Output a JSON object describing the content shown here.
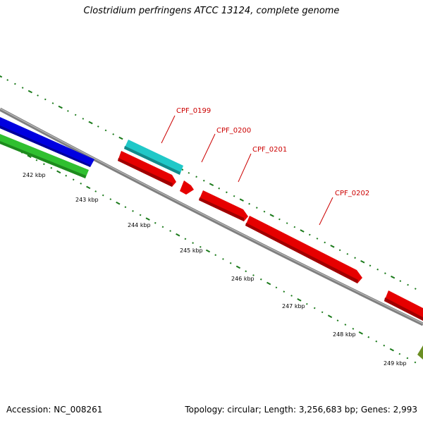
{
  "title": "Clostridium perfringens ATCC 13124, complete genome",
  "footer": {
    "accession": "Accession: NC_008261",
    "summary": "Topology: circular; Length: 3,256,683 bp; Genes: 2,993"
  },
  "ticks": [
    {
      "label": "242 kbp"
    },
    {
      "label": "243 kbp"
    },
    {
      "label": "244 kbp"
    },
    {
      "label": "245 kbp"
    },
    {
      "label": "246 kbp"
    },
    {
      "label": "247 kbp"
    },
    {
      "label": "248 kbp"
    },
    {
      "label": "249 kbp"
    }
  ],
  "genes": [
    {
      "label": "CPF_0199",
      "color": "#20c8c8"
    },
    {
      "label": "CPF_0200",
      "color": "#e60000"
    },
    {
      "label": "CPF_0201",
      "color": "#e60000"
    },
    {
      "label": "CPF_0202",
      "color": "#e60000"
    }
  ],
  "colors": {
    "backbone": "#808080",
    "ticks": "#1a7a1a",
    "gene_label": "#cc0000",
    "blue_track": "#0000e0",
    "green_track": "#30c030",
    "olive_feature": "#6b8e23"
  }
}
